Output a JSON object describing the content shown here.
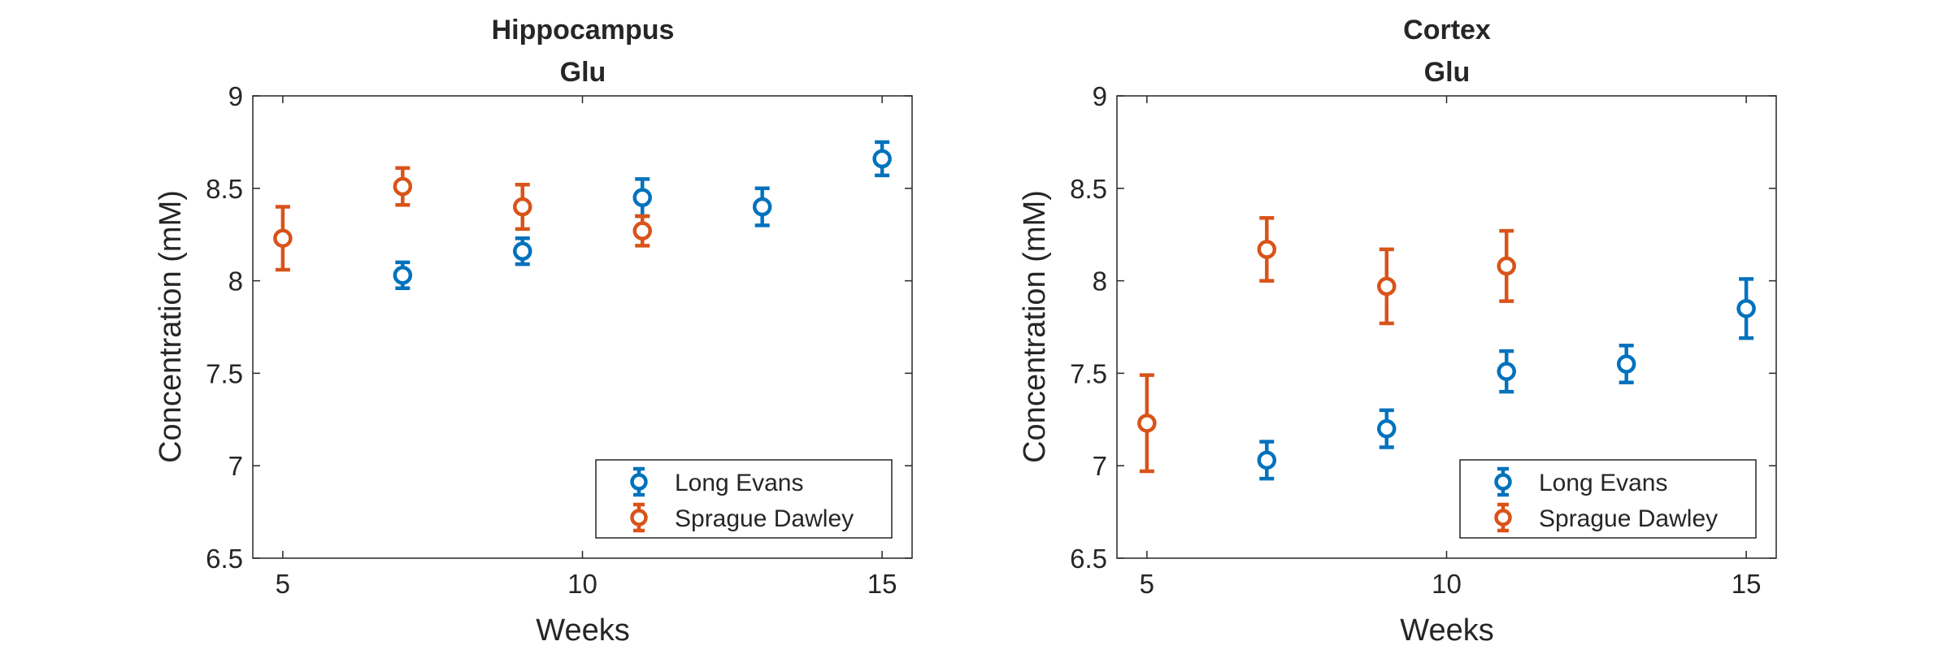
{
  "figure": {
    "charts_count": 2
  },
  "chart_data": [
    {
      "type": "scatter",
      "title": [
        "Hippocampus",
        "Glu"
      ],
      "xlabel": "Weeks",
      "ylabel": "Concentration (mM)",
      "xlim": [
        4.5,
        15.5
      ],
      "ylim": [
        6.5,
        9
      ],
      "xticks": [
        5,
        10,
        15
      ],
      "yticks": [
        6.5,
        7,
        7.5,
        8,
        8.5,
        9
      ],
      "grid": false,
      "legend_position": "bottom-right",
      "series": [
        {
          "name": "Long Evans",
          "color": "#0072BD",
          "x": [
            7,
            9,
            11,
            13,
            15
          ],
          "y": [
            8.03,
            8.16,
            8.45,
            8.4,
            8.66
          ],
          "err": [
            0.07,
            0.07,
            0.1,
            0.1,
            0.09
          ]
        },
        {
          "name": "Sprague Dawley",
          "color": "#D95319",
          "x": [
            5,
            7,
            9,
            11
          ],
          "y": [
            8.23,
            8.51,
            8.4,
            8.27
          ],
          "err": [
            0.17,
            0.1,
            0.12,
            0.08
          ]
        }
      ]
    },
    {
      "type": "scatter",
      "title": [
        "Cortex",
        "Glu"
      ],
      "xlabel": "Weeks",
      "ylabel": "Concentration (mM)",
      "xlim": [
        4.5,
        15.5
      ],
      "ylim": [
        6.5,
        9
      ],
      "xticks": [
        5,
        10,
        15
      ],
      "yticks": [
        6.5,
        7,
        7.5,
        8,
        8.5,
        9
      ],
      "grid": false,
      "legend_position": "bottom-right",
      "series": [
        {
          "name": "Long Evans",
          "color": "#0072BD",
          "x": [
            7,
            9,
            11,
            13,
            15
          ],
          "y": [
            7.03,
            7.2,
            7.51,
            7.55,
            7.85
          ],
          "err": [
            0.1,
            0.1,
            0.11,
            0.1,
            0.16
          ]
        },
        {
          "name": "Sprague Dawley",
          "color": "#D95319",
          "x": [
            5,
            7,
            9,
            11
          ],
          "y": [
            7.23,
            8.17,
            7.97,
            8.08
          ],
          "err": [
            0.26,
            0.17,
            0.2,
            0.19
          ]
        }
      ]
    }
  ]
}
